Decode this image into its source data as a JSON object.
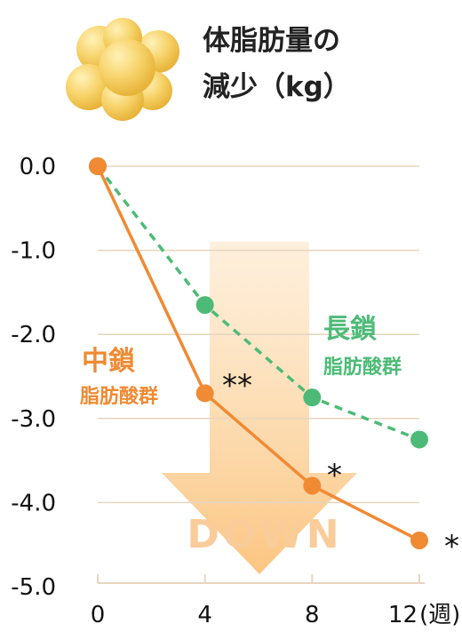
{
  "title": {
    "line1": "体脂肪量の",
    "line2": "減少（kg）"
  },
  "icon": "fat-cells-icon",
  "colors": {
    "orange": "#f08a33",
    "green": "#4dbb77",
    "grid": "#e6d6bf",
    "arrow": "#fcc884",
    "down_text": "#f9cc9a"
  },
  "arrow_label": "DOWN",
  "chart_data": {
    "type": "line",
    "x": [
      0,
      4,
      8,
      12
    ],
    "xtick_labels": [
      "0",
      "4",
      "8",
      "12"
    ],
    "x_unit": "(週)",
    "ylim": [
      -5.0,
      0.0
    ],
    "ytick_values": [
      0,
      -1,
      -2,
      -3,
      -4,
      -5
    ],
    "ytick_labels": [
      "0.0",
      "-1.0",
      "-2.0",
      "-3.0",
      "-4.0",
      "-5.0"
    ],
    "grid": true,
    "series": [
      {
        "name_line1": "中鎖",
        "name_line2": "脂肪酸群",
        "color": "#f08a33",
        "style": "solid",
        "values": [
          0.0,
          -2.7,
          -3.8,
          -4.45
        ]
      },
      {
        "name_line1": "長鎖",
        "name_line2": "脂肪酸群",
        "color": "#4dbb77",
        "style": "dashed",
        "values": [
          0.0,
          -1.65,
          -2.75,
          -3.25
        ]
      }
    ],
    "annotations": [
      "**",
      "*",
      "*"
    ]
  }
}
